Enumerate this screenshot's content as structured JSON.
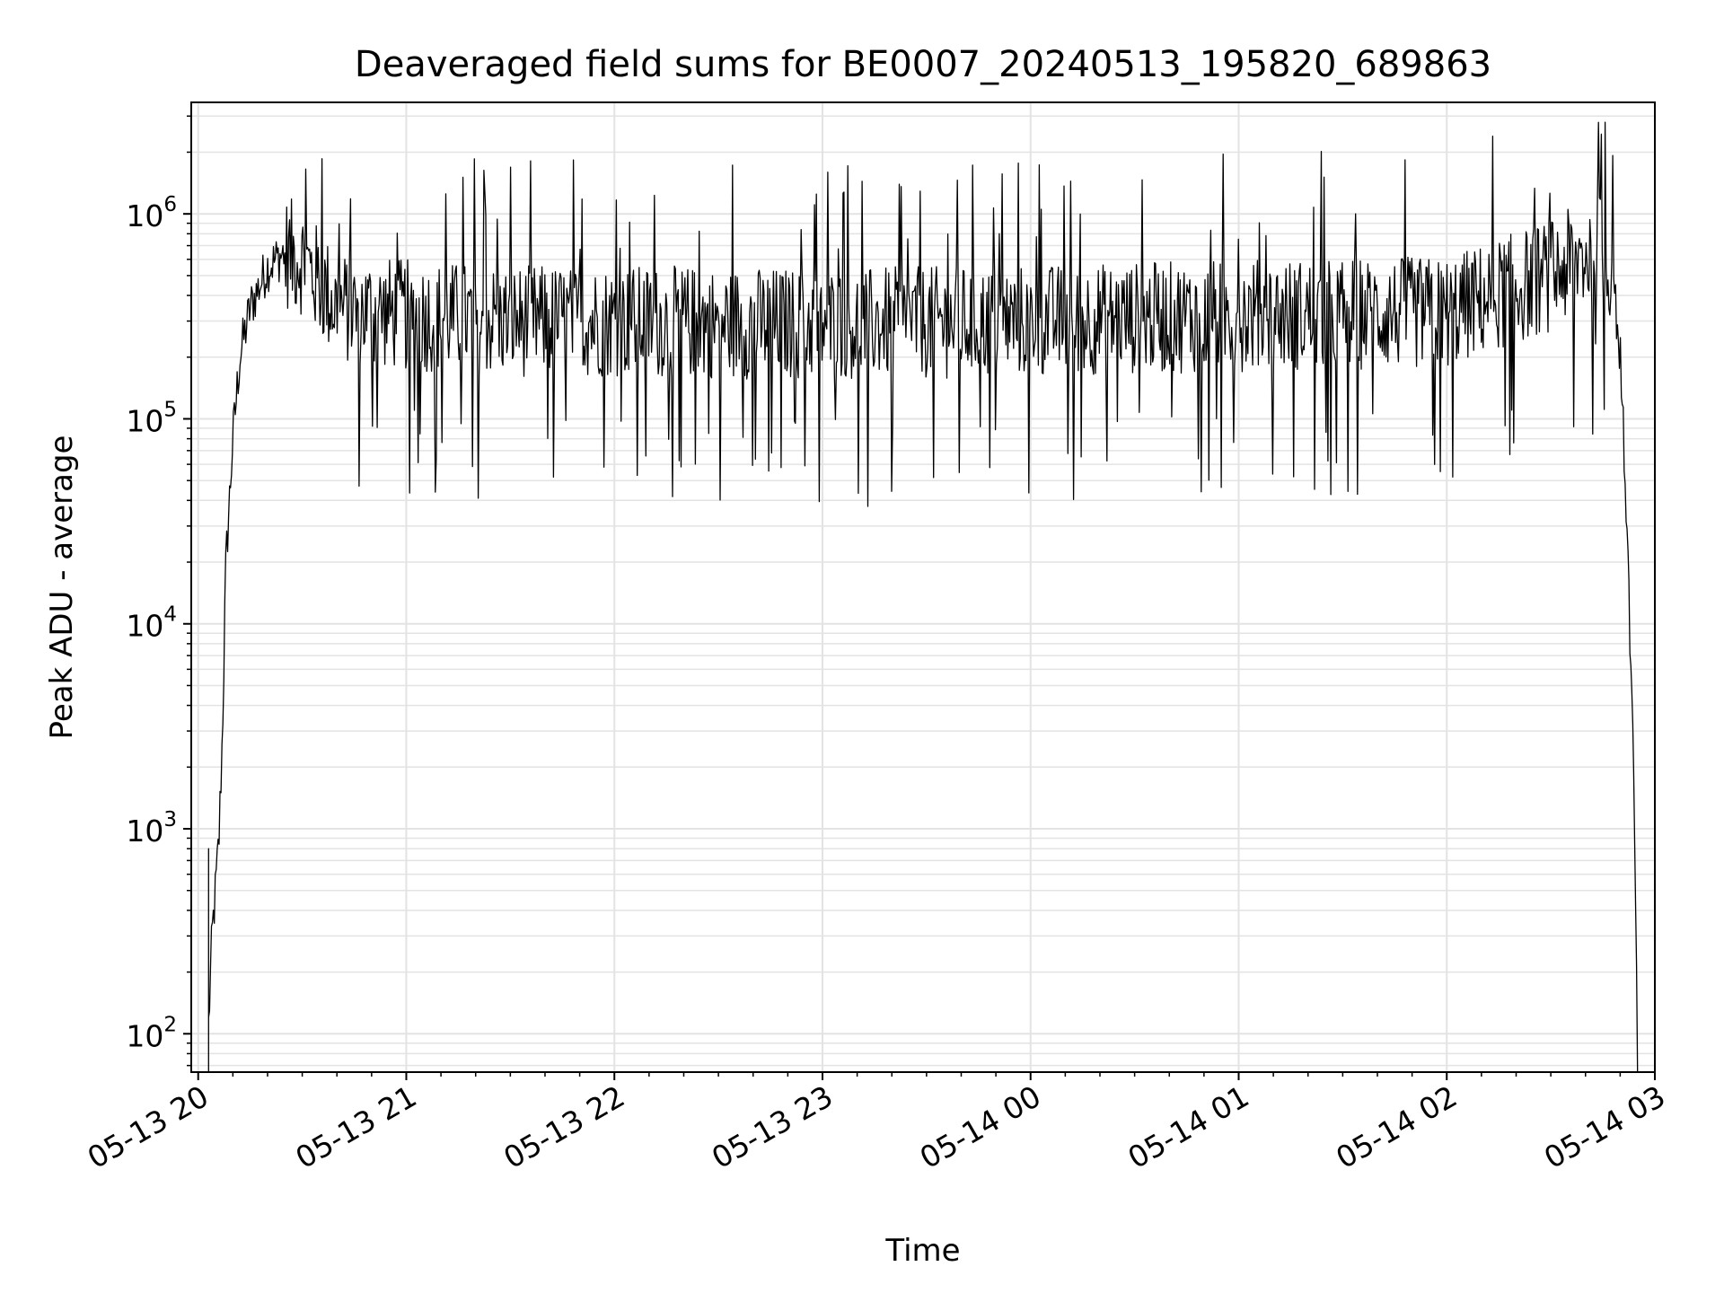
{
  "chart_data": {
    "type": "line",
    "title": "Deaveraged field sums for BE0007_20240513_195820_689863",
    "xlabel": "Time",
    "ylabel": "Peak ADU - average",
    "x_tick_labels": [
      "05-13 20",
      "05-13 21",
      "05-13 22",
      "05-13 23",
      "05-14 00",
      "05-14 01",
      "05-14 02",
      "05-14 03"
    ],
    "x_range": [
      "2024-05-13 19:58",
      "2024-05-14 03:00"
    ],
    "y_scale": "log",
    "y_tick_labels": [
      {
        "base": "10",
        "exp": "2"
      },
      {
        "base": "10",
        "exp": "3"
      },
      {
        "base": "10",
        "exp": "4"
      },
      {
        "base": "10",
        "exp": "5"
      },
      {
        "base": "10",
        "exp": "6"
      }
    ],
    "ylim": [
      65,
      3500000
    ],
    "grid": true,
    "line_color": "#000000",
    "grid_color": "#e3e3e3",
    "series": [
      {
        "x": [
          "2024-05-13 20:03",
          "2024-05-13 20:04",
          "2024-05-13 20:05",
          "2024-05-13 20:06",
          "2024-05-13 20:07",
          "2024-05-13 20:08",
          "2024-05-13 20:10",
          "2024-05-13 20:12",
          "2024-05-13 20:15",
          "2024-05-13 20:20",
          "2024-05-13 20:25",
          "2024-05-13 20:30",
          "2024-05-13 20:40",
          "2024-05-13 21:00",
          "2024-05-13 21:30",
          "2024-05-13 22:00",
          "2024-05-13 23:00",
          "2024-05-14 00:00",
          "2024-05-14 01:00",
          "2024-05-14 02:00",
          "2024-05-14 02:30",
          "2024-05-14 02:45",
          "2024-05-14 02:48",
          "2024-05-14 02:50",
          "2024-05-14 02:52",
          "2024-05-14 02:54",
          "2024-05-14 02:55"
        ],
        "values": [
          110,
          300,
          500,
          900,
          3000,
          20000,
          80000,
          200000,
          350000,
          550000,
          650000,
          600000,
          350000,
          320000,
          300000,
          300000,
          290000,
          300000,
          320000,
          330000,
          500000,
          700000,
          500000,
          200000,
          30000,
          1500,
          70
        ]
      }
    ]
  }
}
